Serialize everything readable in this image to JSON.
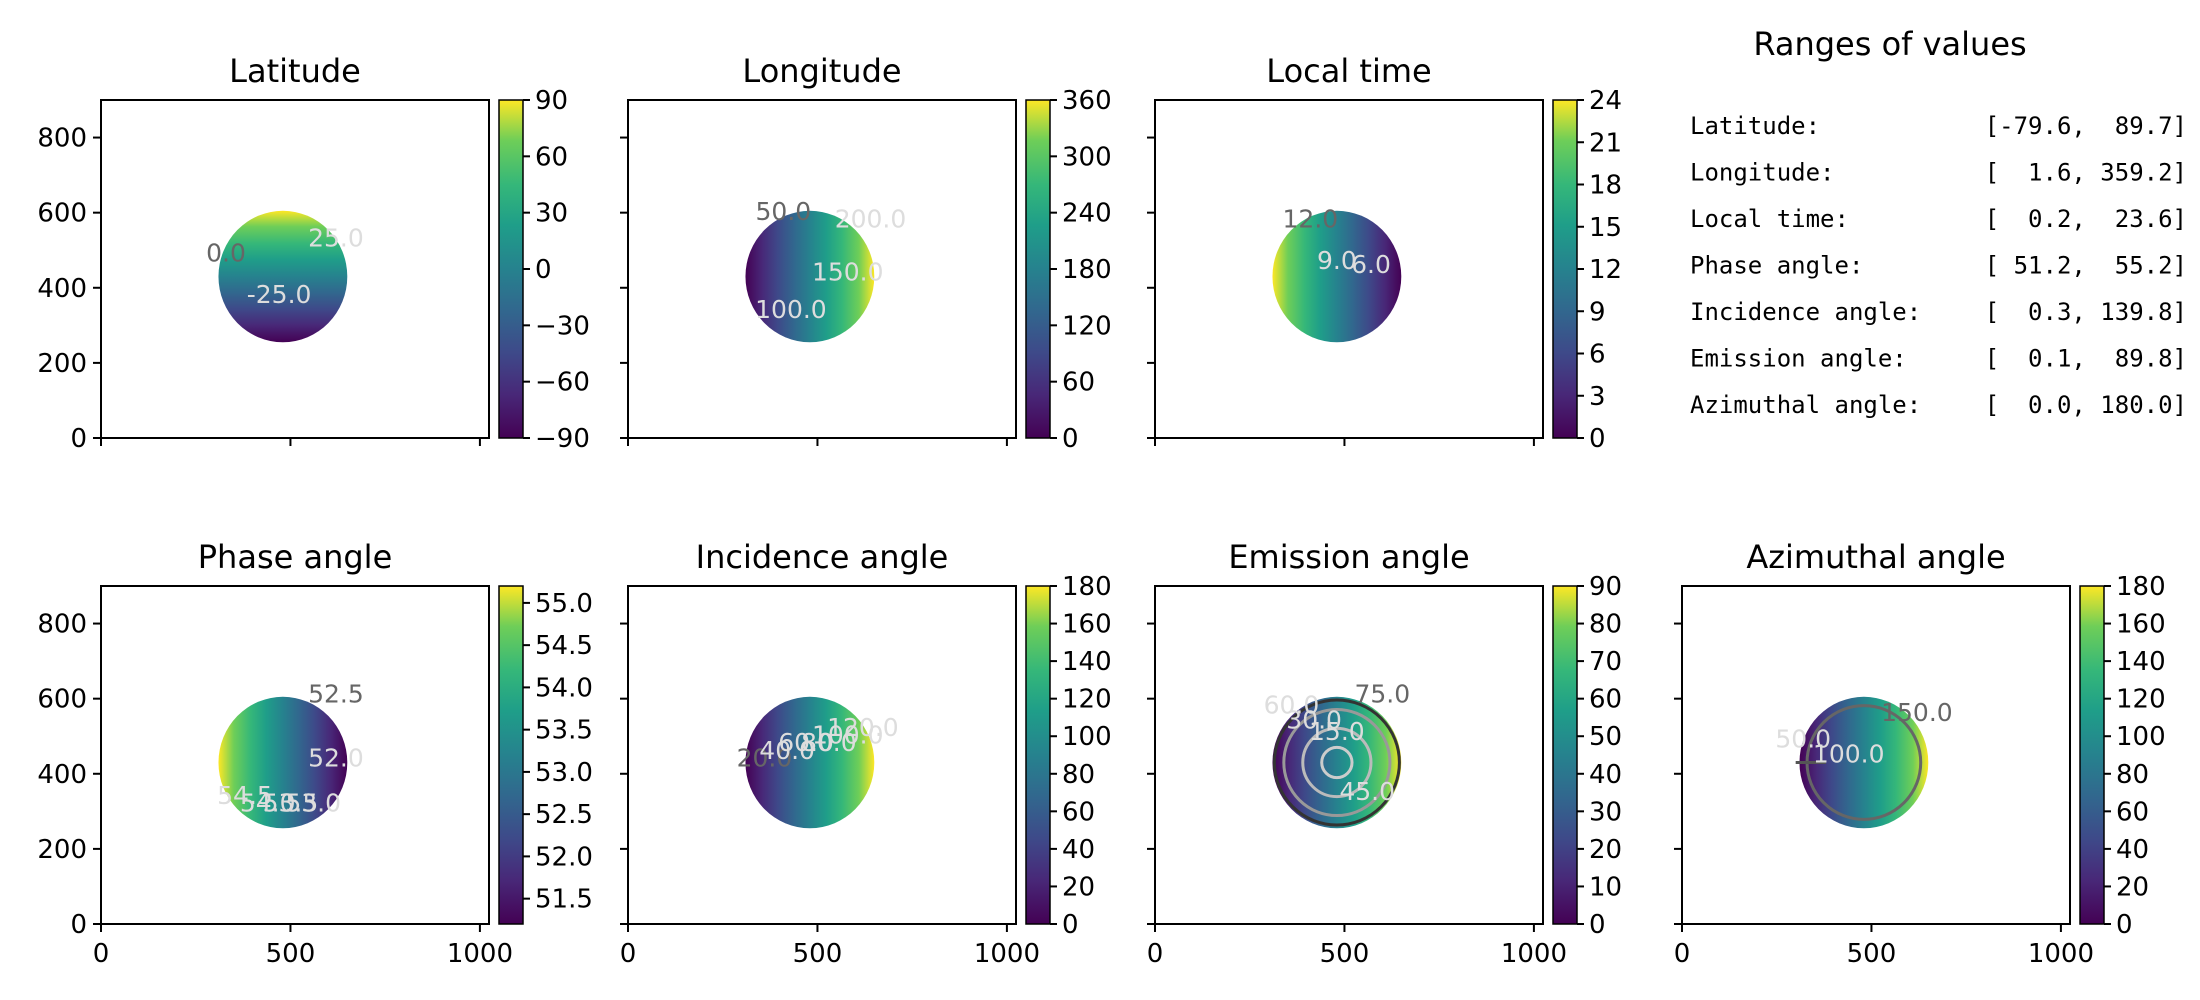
{
  "figure": {
    "ranges_title": "Ranges of values",
    "ranges": [
      {
        "label": "Latitude:",
        "min": "-79.6",
        "max": "89.7"
      },
      {
        "label": "Longitude:",
        "min": "1.6",
        "max": "359.2"
      },
      {
        "label": "Local time:",
        "min": "0.2",
        "max": "23.6"
      },
      {
        "label": "Phase angle:",
        "min": "51.2",
        "max": "55.2"
      },
      {
        "label": "Incidence angle:",
        "min": "0.3",
        "max": "139.8"
      },
      {
        "label": "Emission angle:",
        "min": "0.1",
        "max": "89.8"
      },
      {
        "label": "Azimuthal angle:",
        "min": "0.0",
        "max": "180.0"
      }
    ]
  },
  "chart_data": [
    {
      "type": "heatmap",
      "title": "Latitude",
      "colormap": "viridis",
      "xlim": [
        0,
        1024
      ],
      "ylim": [
        0,
        900
      ],
      "xticks": [
        "0",
        "500",
        "1000"
      ],
      "yticks": [
        "0",
        "200",
        "400",
        "600",
        "800"
      ],
      "disk": {
        "center": [
          480,
          430
        ],
        "radius": 170
      },
      "colorbar": {
        "min": -90,
        "max": 90,
        "ticks": [
          "−90",
          "−60",
          "−30",
          "0",
          "30",
          "60",
          "90"
        ]
      },
      "contour_labels": [
        "0.0",
        "25.0",
        "-25.0"
      ]
    },
    {
      "type": "heatmap",
      "title": "Longitude",
      "colormap": "viridis",
      "xlim": [
        0,
        1024
      ],
      "ylim": [
        0,
        900
      ],
      "xticks": [
        "0",
        "500",
        "1000"
      ],
      "yticks": [
        "0",
        "200",
        "400",
        "600",
        "800"
      ],
      "disk": {
        "center": [
          480,
          430
        ],
        "radius": 170
      },
      "colorbar": {
        "min": 0,
        "max": 360,
        "ticks": [
          "0",
          "60",
          "120",
          "180",
          "240",
          "300",
          "360"
        ]
      },
      "contour_labels": [
        "50.0",
        "200.0",
        "150.0",
        "100.0"
      ]
    },
    {
      "type": "heatmap",
      "title": "Local time",
      "colormap": "viridis",
      "xlim": [
        0,
        1024
      ],
      "ylim": [
        0,
        900
      ],
      "xticks": [
        "0",
        "500",
        "1000"
      ],
      "yticks": [
        "0",
        "200",
        "400",
        "600",
        "800"
      ],
      "disk": {
        "center": [
          480,
          430
        ],
        "radius": 170
      },
      "colorbar": {
        "min": 0,
        "max": 24,
        "ticks": [
          "0",
          "3",
          "6",
          "9",
          "12",
          "15",
          "18",
          "21",
          "24"
        ]
      },
      "contour_labels": [
        "12.0",
        "9.0",
        "6.0"
      ]
    },
    {
      "type": "heatmap",
      "title": "Phase angle",
      "colormap": "viridis",
      "xlim": [
        0,
        1024
      ],
      "ylim": [
        0,
        900
      ],
      "xticks": [
        "0",
        "500",
        "1000"
      ],
      "yticks": [
        "0",
        "200",
        "400",
        "600",
        "800"
      ],
      "disk": {
        "center": [
          480,
          430
        ],
        "radius": 170
      },
      "colorbar": {
        "min": 51.2,
        "max": 55.2,
        "ticks": [
          "51.5",
          "52.0",
          "52.5",
          "53.0",
          "53.5",
          "54.0",
          "54.5",
          "55.0"
        ]
      },
      "contour_labels": [
        "52.5",
        "54.5",
        "54.0",
        "53.5",
        "53.0",
        "52.0"
      ]
    },
    {
      "type": "heatmap",
      "title": "Incidence angle",
      "colormap": "viridis",
      "xlim": [
        0,
        1024
      ],
      "ylim": [
        0,
        900
      ],
      "xticks": [
        "0",
        "500",
        "1000"
      ],
      "yticks": [
        "0",
        "200",
        "400",
        "600",
        "800"
      ],
      "disk": {
        "center": [
          480,
          430
        ],
        "radius": 170
      },
      "colorbar": {
        "min": 0,
        "max": 180,
        "ticks": [
          "0",
          "20",
          "40",
          "60",
          "80",
          "100",
          "120",
          "140",
          "160",
          "180"
        ]
      },
      "contour_labels": [
        "20.0",
        "40.0",
        "60.0",
        "80.0",
        "100.0",
        "120.0"
      ]
    },
    {
      "type": "heatmap",
      "title": "Emission angle",
      "colormap": "viridis",
      "xlim": [
        0,
        1024
      ],
      "ylim": [
        0,
        900
      ],
      "xticks": [
        "0",
        "500",
        "1000"
      ],
      "yticks": [
        "0",
        "200",
        "400",
        "600",
        "800"
      ],
      "disk": {
        "center": [
          480,
          430
        ],
        "radius": 170
      },
      "colorbar": {
        "min": 0,
        "max": 90,
        "ticks": [
          "0",
          "10",
          "20",
          "30",
          "40",
          "50",
          "60",
          "70",
          "80",
          "90"
        ]
      },
      "contour_labels": [
        "75.0",
        "60.0",
        "30.0",
        "15.0",
        "45.0"
      ]
    },
    {
      "type": "heatmap",
      "title": "Azimuthal angle",
      "colormap": "viridis",
      "xlim": [
        0,
        1024
      ],
      "ylim": [
        0,
        900
      ],
      "xticks": [
        "0",
        "500",
        "1000"
      ],
      "yticks": [
        "0",
        "200",
        "400",
        "600",
        "800"
      ],
      "disk": {
        "center": [
          480,
          430
        ],
        "radius": 170
      },
      "colorbar": {
        "min": 0,
        "max": 180,
        "ticks": [
          "0",
          "20",
          "40",
          "60",
          "80",
          "100",
          "120",
          "140",
          "160",
          "180"
        ]
      },
      "contour_labels": [
        "150.0",
        "100.0",
        "50.0"
      ]
    }
  ]
}
